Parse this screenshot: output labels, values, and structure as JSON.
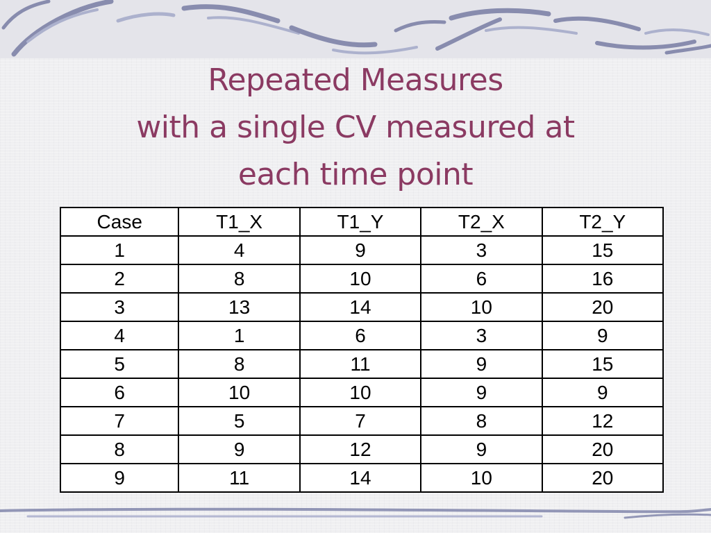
{
  "slide": {
    "title_lines": [
      "Repeated Measures",
      "with a single CV measured at",
      "each time point"
    ]
  },
  "table": {
    "headers": [
      "Case",
      "T1_X",
      "T1_Y",
      "T2_X",
      "T2_Y"
    ],
    "rows": [
      [
        "1",
        "4",
        "9",
        "3",
        "15"
      ],
      [
        "2",
        "8",
        "10",
        "6",
        "16"
      ],
      [
        "3",
        "13",
        "14",
        "10",
        "20"
      ],
      [
        "4",
        "1",
        "6",
        "3",
        "9"
      ],
      [
        "5",
        "8",
        "11",
        "9",
        "15"
      ],
      [
        "6",
        "10",
        "10",
        "9",
        "9"
      ],
      [
        "7",
        "5",
        "7",
        "8",
        "12"
      ],
      [
        "8",
        "9",
        "12",
        "9",
        "20"
      ],
      [
        "9",
        "11",
        "14",
        "10",
        "20"
      ]
    ]
  },
  "colors": {
    "title": "#8b3a62",
    "decoration": "#6a6f9a",
    "background": "#efeff1"
  }
}
